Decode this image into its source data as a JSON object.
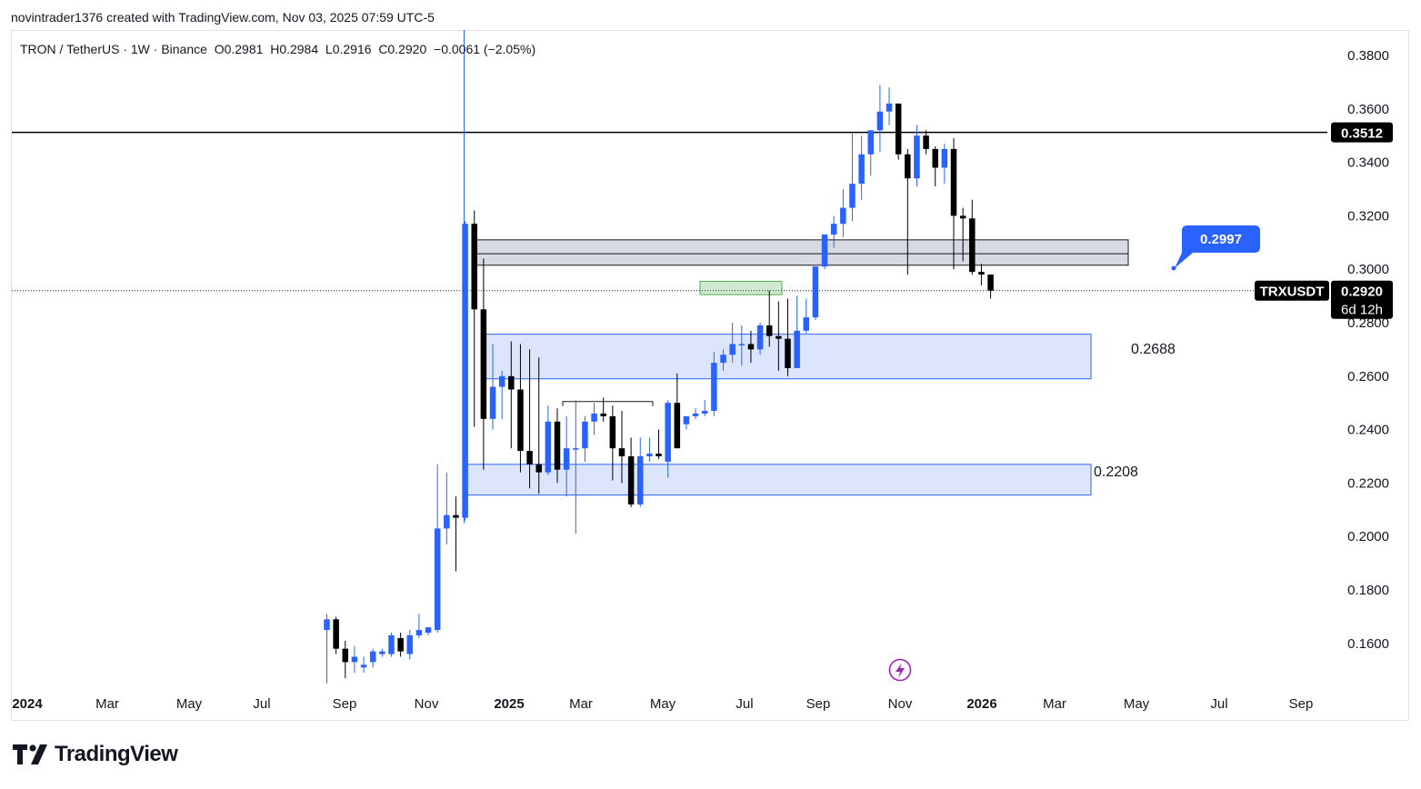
{
  "header": {
    "credit": "novintrader1376 created with TradingView.com, Nov 03, 2025 07:59 UTC-5"
  },
  "legend": {
    "symbol": "TRON / TetherUS · 1W · Binance",
    "open": "O0.2981",
    "high": "H0.2984",
    "low": "L0.2916",
    "close": "C0.2920",
    "change": "−0.0061 (−2.05%)"
  },
  "footer": {
    "brand": "TradingView"
  },
  "chart_data": {
    "type": "candlestick",
    "symbol": "TRXUSDT",
    "exchange": "Binance",
    "interval": "1W",
    "y_axis": {
      "ticks": [
        "0.3800",
        "0.3600",
        "0.3400",
        "0.3200",
        "0.3000",
        "0.2800",
        "0.2600",
        "0.2400",
        "0.2200",
        "0.2000",
        "0.1800",
        "0.1600"
      ],
      "range": [
        0.143,
        0.3885
      ]
    },
    "x_axis": {
      "labels": [
        {
          "text": "2024",
          "year": true
        },
        {
          "text": "Mar",
          "year": false
        },
        {
          "text": "May",
          "year": false
        },
        {
          "text": "Jul",
          "year": false
        },
        {
          "text": "Sep",
          "year": false
        },
        {
          "text": "Nov",
          "year": false
        },
        {
          "text": "2025",
          "year": true
        },
        {
          "text": "Mar",
          "year": false
        },
        {
          "text": "May",
          "year": false
        },
        {
          "text": "Jul",
          "year": false
        },
        {
          "text": "Sep",
          "year": false
        },
        {
          "text": "Nov",
          "year": false
        },
        {
          "text": "2026",
          "year": true
        },
        {
          "text": "Mar",
          "year": false
        },
        {
          "text": "May",
          "year": false
        },
        {
          "text": "Jul",
          "year": false
        },
        {
          "text": "Sep",
          "year": false
        }
      ]
    },
    "candles": [
      [
        0.165,
        0.171,
        0.145,
        0.169
      ],
      [
        0.169,
        0.17,
        0.156,
        0.158
      ],
      [
        0.158,
        0.161,
        0.147,
        0.153
      ],
      [
        0.153,
        0.159,
        0.149,
        0.155
      ],
      [
        0.151,
        0.155,
        0.149,
        0.152
      ],
      [
        0.153,
        0.158,
        0.151,
        0.157
      ],
      [
        0.156,
        0.158,
        0.155,
        0.157
      ],
      [
        0.156,
        0.164,
        0.155,
        0.163
      ],
      [
        0.162,
        0.164,
        0.155,
        0.157
      ],
      [
        0.156,
        0.165,
        0.154,
        0.163
      ],
      [
        0.163,
        0.171,
        0.162,
        0.165
      ],
      [
        0.164,
        0.166,
        0.163,
        0.166
      ],
      [
        0.165,
        0.227,
        0.164,
        0.203
      ],
      [
        0.203,
        0.224,
        0.197,
        0.208
      ],
      [
        0.208,
        0.215,
        0.187,
        0.207
      ],
      [
        0.207,
        0.318,
        0.206,
        0.317
      ],
      [
        0.317,
        0.322,
        0.241,
        0.285
      ],
      [
        0.285,
        0.304,
        0.225,
        0.244
      ],
      [
        0.244,
        0.272,
        0.24,
        0.256
      ],
      [
        0.256,
        0.262,
        0.244,
        0.26
      ],
      [
        0.26,
        0.273,
        0.233,
        0.255
      ],
      [
        0.255,
        0.272,
        0.224,
        0.232
      ],
      [
        0.232,
        0.27,
        0.218,
        0.227
      ],
      [
        0.227,
        0.267,
        0.216,
        0.224
      ],
      [
        0.224,
        0.249,
        0.223,
        0.243
      ],
      [
        0.243,
        0.248,
        0.22,
        0.225
      ],
      [
        0.225,
        0.245,
        0.215,
        0.233
      ],
      [
        0.233,
        0.251,
        0.201,
        0.233
      ],
      [
        0.233,
        0.245,
        0.228,
        0.243
      ],
      [
        0.243,
        0.25,
        0.238,
        0.246
      ],
      [
        0.246,
        0.252,
        0.243,
        0.245
      ],
      [
        0.245,
        0.249,
        0.221,
        0.233
      ],
      [
        0.233,
        0.247,
        0.22,
        0.23
      ],
      [
        0.23,
        0.237,
        0.211,
        0.212
      ],
      [
        0.212,
        0.237,
        0.211,
        0.23
      ],
      [
        0.23,
        0.237,
        0.228,
        0.231
      ],
      [
        0.231,
        0.24,
        0.229,
        0.23
      ],
      [
        0.228,
        0.251,
        0.222,
        0.25
      ],
      [
        0.25,
        0.261,
        0.235,
        0.233
      ],
      [
        0.242,
        0.244,
        0.24,
        0.245
      ],
      [
        0.245,
        0.248,
        0.244,
        0.246
      ],
      [
        0.246,
        0.251,
        0.245,
        0.247
      ],
      [
        0.247,
        0.269,
        0.245,
        0.265
      ],
      [
        0.265,
        0.27,
        0.262,
        0.268
      ],
      [
        0.268,
        0.28,
        0.265,
        0.272
      ],
      [
        0.272,
        0.279,
        0.264,
        0.272
      ],
      [
        0.272,
        0.277,
        0.265,
        0.27
      ],
      [
        0.27,
        0.28,
        0.268,
        0.279
      ],
      [
        0.279,
        0.292,
        0.271,
        0.275
      ],
      [
        0.275,
        0.288,
        0.262,
        0.274
      ],
      [
        0.274,
        0.289,
        0.26,
        0.263
      ],
      [
        0.263,
        0.29,
        0.263,
        0.277
      ],
      [
        0.277,
        0.289,
        0.276,
        0.282
      ],
      [
        0.282,
        0.301,
        0.281,
        0.301
      ],
      [
        0.301,
        0.313,
        0.3,
        0.313
      ],
      [
        0.313,
        0.32,
        0.308,
        0.317
      ],
      [
        0.317,
        0.33,
        0.312,
        0.323
      ],
      [
        0.323,
        0.351,
        0.318,
        0.332
      ],
      [
        0.332,
        0.35,
        0.326,
        0.343
      ],
      [
        0.343,
        0.352,
        0.335,
        0.352
      ],
      [
        0.352,
        0.369,
        0.344,
        0.359
      ],
      [
        0.359,
        0.368,
        0.354,
        0.362
      ],
      [
        0.362,
        0.362,
        0.341,
        0.343
      ],
      [
        0.343,
        0.345,
        0.298,
        0.334
      ],
      [
        0.334,
        0.354,
        0.331,
        0.35
      ],
      [
        0.35,
        0.352,
        0.343,
        0.345
      ],
      [
        0.345,
        0.346,
        0.331,
        0.338
      ],
      [
        0.338,
        0.347,
        0.332,
        0.345
      ],
      [
        0.345,
        0.349,
        0.3,
        0.32
      ],
      [
        0.32,
        0.323,
        0.303,
        0.319
      ],
      [
        0.319,
        0.326,
        0.298,
        0.299
      ],
      [
        0.299,
        0.302,
        0.294,
        0.298
      ],
      [
        0.298,
        0.298,
        0.289,
        0.292
      ]
    ],
    "annotations": {
      "horizontal_line": {
        "value": 0.3512,
        "label": "0.3512"
      },
      "last_price_line": {
        "value": 0.292
      },
      "price_tag": {
        "symbol": "TRXUSDT",
        "price": "0.2920",
        "countdown": "6d 12h"
      },
      "zones": [
        {
          "top": 0.311,
          "bottom": 0.3015,
          "color": "#d1d4dc",
          "border": "#131722",
          "midline": 0.3058
        },
        {
          "top": 0.2955,
          "bottom": 0.2905,
          "color": "#c8e6c9",
          "border": "#4caf50"
        },
        {
          "top": 0.2757,
          "bottom": 0.259,
          "color": "#d6e1fb",
          "border": "#2962ff",
          "label": "0.2688"
        },
        {
          "top": 0.227,
          "bottom": 0.2155,
          "color": "#d6e1fb",
          "border": "#2962ff",
          "label": "0.2208"
        }
      ],
      "range_bracket": {
        "value": 0.2505
      },
      "callout": {
        "label": "0.2997",
        "color": "#2962ff"
      }
    },
    "colors": {
      "up": "#2962ff",
      "down": "#000000",
      "axis_text": "#131722",
      "event_icon": "#9c27b0"
    }
  }
}
